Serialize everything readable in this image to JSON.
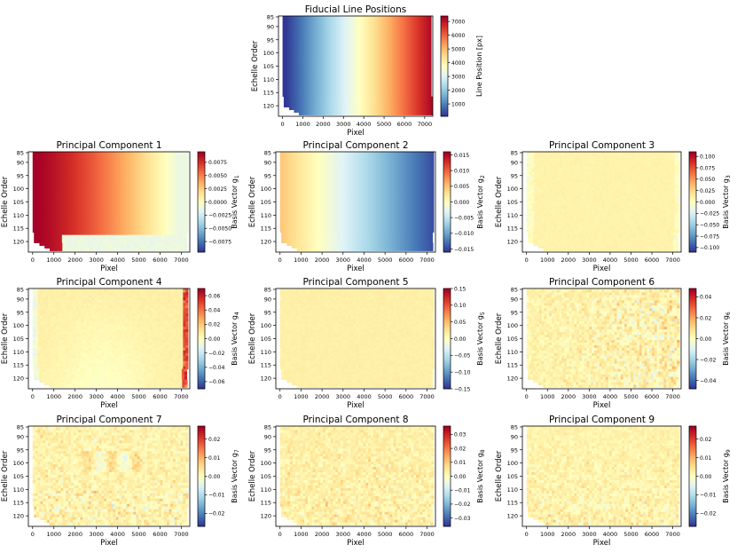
{
  "figure": {
    "description_colormap": "RdYlBu_r"
  },
  "chart_data": [
    {
      "type": "heatmap",
      "id": "fiducial",
      "title": "Fiducial Line Positions",
      "xlabel": "Pixel",
      "ylabel": "Echelle Order",
      "xlim": [
        -200,
        7400
      ],
      "ylim": [
        86,
        124
      ],
      "xticks": [
        0,
        1000,
        2000,
        3000,
        4000,
        5000,
        6000,
        7000
      ],
      "yticks": [
        85,
        90,
        95,
        100,
        105,
        110,
        115,
        120
      ],
      "colorbar": {
        "label": "Line Position [px]",
        "range": [
          100,
          7400
        ],
        "ticks": [
          1000,
          2000,
          3000,
          4000,
          5000,
          6000,
          7000
        ]
      },
      "pattern": "fiducial"
    },
    {
      "type": "heatmap",
      "id": "pc1",
      "title": "Principal Component 1",
      "xlabel": "Pixel",
      "ylabel": "Echelle Order",
      "xlim": [
        -200,
        7400
      ],
      "ylim": [
        86,
        124
      ],
      "xticks": [
        0,
        1000,
        2000,
        3000,
        4000,
        5000,
        6000,
        7000
      ],
      "yticks": [
        85,
        90,
        95,
        100,
        105,
        110,
        115,
        120
      ],
      "colorbar": {
        "label": "Basis Vector g",
        "subscript": "1",
        "range": [
          -0.0095,
          0.0095
        ],
        "ticks": [
          -0.0075,
          -0.005,
          -0.0025,
          0.0,
          0.0025,
          0.005,
          0.0075
        ],
        "tick_labels": [
          "−0.0075",
          "−0.0050",
          "−0.0025",
          "0.0000",
          "0.0025",
          "0.0050",
          "0.0075"
        ]
      },
      "pattern": "pc1"
    },
    {
      "type": "heatmap",
      "id": "pc2",
      "title": "Principal Component 2",
      "xlabel": "Pixel",
      "ylabel": "Echelle Order",
      "xlim": [
        -200,
        7400
      ],
      "ylim": [
        86,
        124
      ],
      "xticks": [
        0,
        1000,
        2000,
        3000,
        4000,
        5000,
        6000,
        7000
      ],
      "yticks": [
        85,
        90,
        95,
        100,
        105,
        110,
        115,
        120
      ],
      "colorbar": {
        "label": "Basis Vector g",
        "subscript": "2",
        "range": [
          -0.016,
          0.016
        ],
        "ticks": [
          -0.015,
          -0.01,
          -0.005,
          0.0,
          0.005,
          0.01,
          0.015
        ],
        "tick_labels": [
          "−0.015",
          "−0.010",
          "−0.005",
          "0.000",
          "0.005",
          "0.010",
          "0.015"
        ]
      },
      "pattern": "pc2"
    },
    {
      "type": "heatmap",
      "id": "pc3",
      "title": "Principal Component 3",
      "xlabel": "Pixel",
      "ylabel": "Echelle Order",
      "xlim": [
        -200,
        7400
      ],
      "ylim": [
        86,
        124
      ],
      "xticks": [
        0,
        1000,
        2000,
        3000,
        4000,
        5000,
        6000,
        7000
      ],
      "yticks": [
        85,
        90,
        95,
        100,
        105,
        110,
        115,
        120
      ],
      "colorbar": {
        "label": "Basis Vector g",
        "subscript": "3",
        "range": [
          -0.11,
          0.11
        ],
        "ticks": [
          -0.1,
          -0.075,
          -0.05,
          -0.025,
          0.0,
          0.025,
          0.05,
          0.075,
          0.1
        ],
        "tick_labels": [
          "−0.100",
          "−0.075",
          "−0.050",
          "−0.025",
          "0.000",
          "0.025",
          "0.050",
          "0.075",
          "0.100"
        ]
      },
      "pattern": "pc3"
    },
    {
      "type": "heatmap",
      "id": "pc4",
      "title": "Principal Component 4",
      "xlabel": "Pixel",
      "ylabel": "Echelle Order",
      "xlim": [
        -200,
        7400
      ],
      "ylim": [
        86,
        124
      ],
      "xticks": [
        0,
        1000,
        2000,
        3000,
        4000,
        5000,
        6000,
        7000
      ],
      "yticks": [
        85,
        90,
        95,
        100,
        105,
        110,
        115,
        120
      ],
      "colorbar": {
        "label": "Basis Vector g",
        "subscript": "4",
        "range": [
          -0.07,
          0.07
        ],
        "ticks": [
          -0.06,
          -0.04,
          -0.02,
          0.0,
          0.02,
          0.04,
          0.06
        ],
        "tick_labels": [
          "−0.06",
          "−0.04",
          "−0.02",
          "0.00",
          "0.02",
          "0.04",
          "0.06"
        ]
      },
      "pattern": "pc4"
    },
    {
      "type": "heatmap",
      "id": "pc5",
      "title": "Principal Component 5",
      "xlabel": "Pixel",
      "ylabel": "Echelle Order",
      "xlim": [
        -200,
        7400
      ],
      "ylim": [
        86,
        124
      ],
      "xticks": [
        0,
        1000,
        2000,
        3000,
        4000,
        5000,
        6000,
        7000
      ],
      "yticks": [
        85,
        90,
        95,
        100,
        105,
        110,
        115,
        120
      ],
      "colorbar": {
        "label": "Basis Vector g",
        "subscript": "5",
        "range": [
          -0.15,
          0.15
        ],
        "ticks": [
          -0.15,
          -0.1,
          -0.05,
          0.0,
          0.05,
          0.1,
          0.15
        ],
        "tick_labels": [
          "−0.15",
          "−0.10",
          "−0.05",
          "0.00",
          "0.05",
          "0.10",
          "0.15"
        ]
      },
      "pattern": "pc5"
    },
    {
      "type": "heatmap",
      "id": "pc6",
      "title": "Principal Component 6",
      "xlabel": "Pixel",
      "ylabel": "Echelle Order",
      "xlim": [
        -200,
        7400
      ],
      "ylim": [
        86,
        124
      ],
      "xticks": [
        0,
        1000,
        2000,
        3000,
        4000,
        5000,
        6000,
        7000
      ],
      "yticks": [
        85,
        90,
        95,
        100,
        105,
        110,
        115,
        120
      ],
      "colorbar": {
        "label": "Basis Vector g",
        "subscript": "6",
        "range": [
          -0.048,
          0.048
        ],
        "ticks": [
          -0.04,
          -0.02,
          0.0,
          0.02,
          0.04
        ],
        "tick_labels": [
          "−0.04",
          "−0.02",
          "0.00",
          "0.02",
          "0.04"
        ]
      },
      "pattern": "pc6"
    },
    {
      "type": "heatmap",
      "id": "pc7",
      "title": "Principal Component 7",
      "xlabel": "Pixel",
      "ylabel": "Echelle Order",
      "xlim": [
        -200,
        7400
      ],
      "ylim": [
        86,
        124
      ],
      "xticks": [
        0,
        1000,
        2000,
        3000,
        4000,
        5000,
        6000,
        7000
      ],
      "yticks": [
        85,
        90,
        95,
        100,
        105,
        110,
        115,
        120
      ],
      "colorbar": {
        "label": "Basis Vector g",
        "subscript": "7",
        "range": [
          -0.027,
          0.027
        ],
        "ticks": [
          -0.02,
          -0.01,
          0.0,
          0.01,
          0.02
        ],
        "tick_labels": [
          "−0.02",
          "−0.01",
          "0.00",
          "0.01",
          "0.02"
        ]
      },
      "pattern": "pc7"
    },
    {
      "type": "heatmap",
      "id": "pc8",
      "title": "Principal Component 8",
      "xlabel": "Pixel",
      "ylabel": "Echelle Order",
      "xlim": [
        -200,
        7400
      ],
      "ylim": [
        86,
        124
      ],
      "xticks": [
        0,
        1000,
        2000,
        3000,
        4000,
        5000,
        6000,
        7000
      ],
      "yticks": [
        85,
        90,
        95,
        100,
        105,
        110,
        115,
        120
      ],
      "colorbar": {
        "label": "Basis Vector g",
        "subscript": "8",
        "range": [
          -0.036,
          0.036
        ],
        "ticks": [
          -0.03,
          -0.02,
          -0.01,
          0.0,
          0.01,
          0.02,
          0.03
        ],
        "tick_labels": [
          "−0.03",
          "−0.02",
          "−0.01",
          "0.00",
          "0.01",
          "0.02",
          "0.03"
        ]
      },
      "pattern": "pc8"
    },
    {
      "type": "heatmap",
      "id": "pc9",
      "title": "Principal Component 9",
      "xlabel": "Pixel",
      "ylabel": "Echelle Order",
      "xlim": [
        -200,
        7400
      ],
      "ylim": [
        86,
        124
      ],
      "xticks": [
        0,
        1000,
        2000,
        3000,
        4000,
        5000,
        6000,
        7000
      ],
      "yticks": [
        85,
        90,
        95,
        100,
        105,
        110,
        115,
        120
      ],
      "colorbar": {
        "label": "Basis Vector g",
        "subscript": "9",
        "range": [
          -0.027,
          0.027
        ],
        "ticks": [
          -0.02,
          -0.01,
          0.0,
          0.01,
          0.02
        ],
        "tick_labels": [
          "−0.02",
          "−0.01",
          "0.00",
          "0.01",
          "0.02"
        ]
      },
      "pattern": "pc9"
    }
  ]
}
